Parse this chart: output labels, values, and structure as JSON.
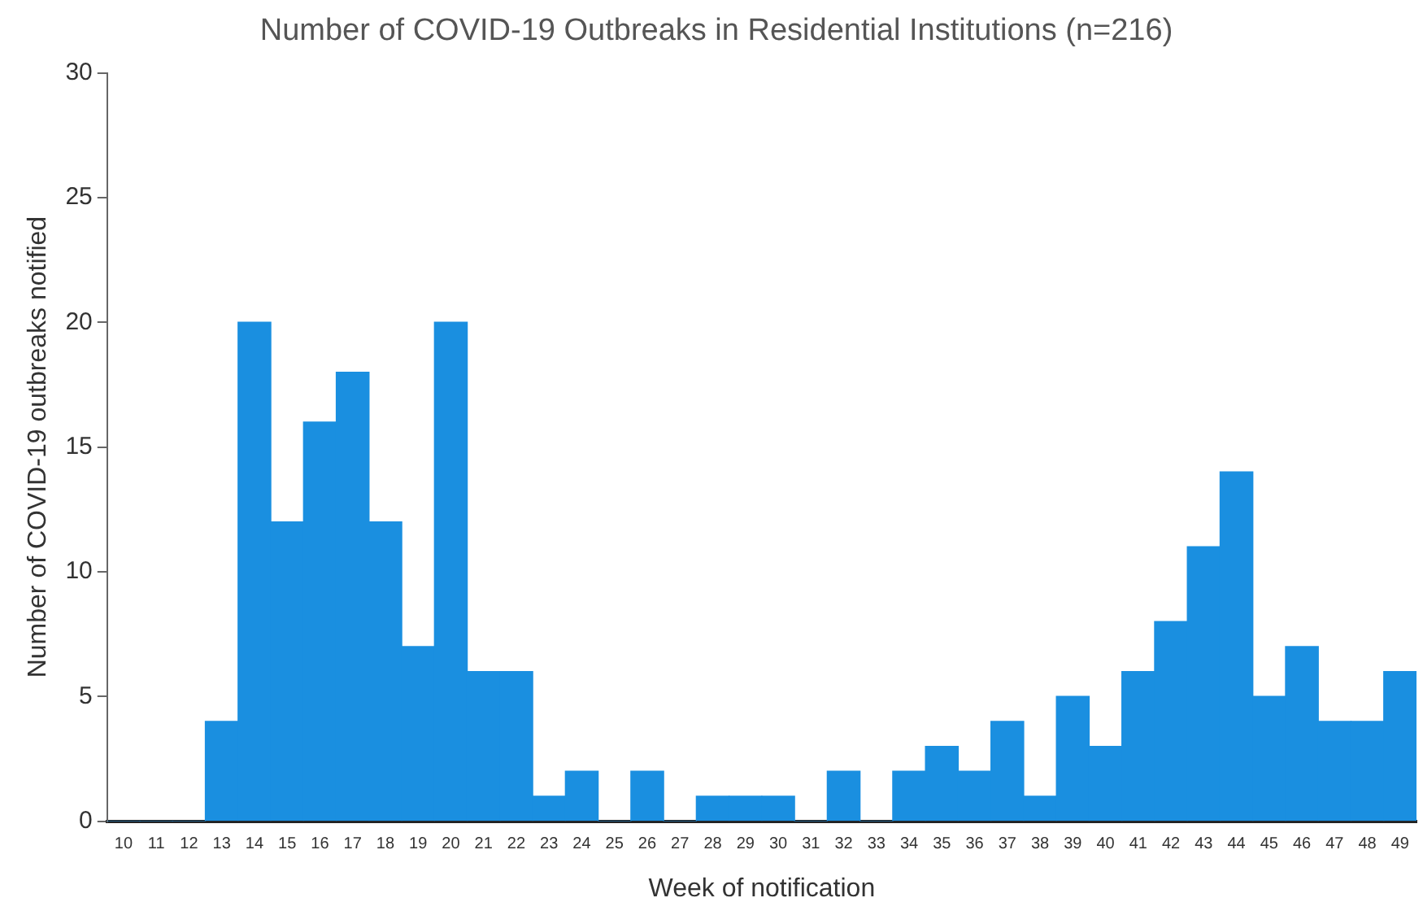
{
  "chart_data": {
    "type": "bar",
    "title": "Number of COVID-19 Outbreaks in Residential Institutions (n=216)",
    "xlabel": "Week of notification",
    "ylabel": "Number of COVID-19 outbreaks notified",
    "categories": [
      "10",
      "11",
      "12",
      "13",
      "14",
      "15",
      "16",
      "17",
      "18",
      "19",
      "20",
      "21",
      "22",
      "23",
      "24",
      "25",
      "26",
      "27",
      "28",
      "29",
      "30",
      "31",
      "32",
      "33",
      "34",
      "35",
      "36",
      "37",
      "38",
      "39",
      "40",
      "41",
      "42",
      "43",
      "44",
      "45",
      "46",
      "47",
      "48",
      "49"
    ],
    "values": [
      0,
      0,
      0,
      4,
      20,
      12,
      16,
      18,
      12,
      7,
      20,
      6,
      6,
      1,
      2,
      0,
      2,
      0,
      1,
      1,
      1,
      0,
      2,
      0,
      2,
      3,
      2,
      4,
      1,
      5,
      3,
      6,
      8,
      11,
      14,
      5,
      7,
      4,
      4,
      6
    ],
    "color": "#1a8fe0",
    "ylim": [
      0,
      30
    ],
    "yticks": [
      0,
      5,
      10,
      15,
      20,
      25,
      30
    ],
    "grid": false,
    "legend": false
  }
}
